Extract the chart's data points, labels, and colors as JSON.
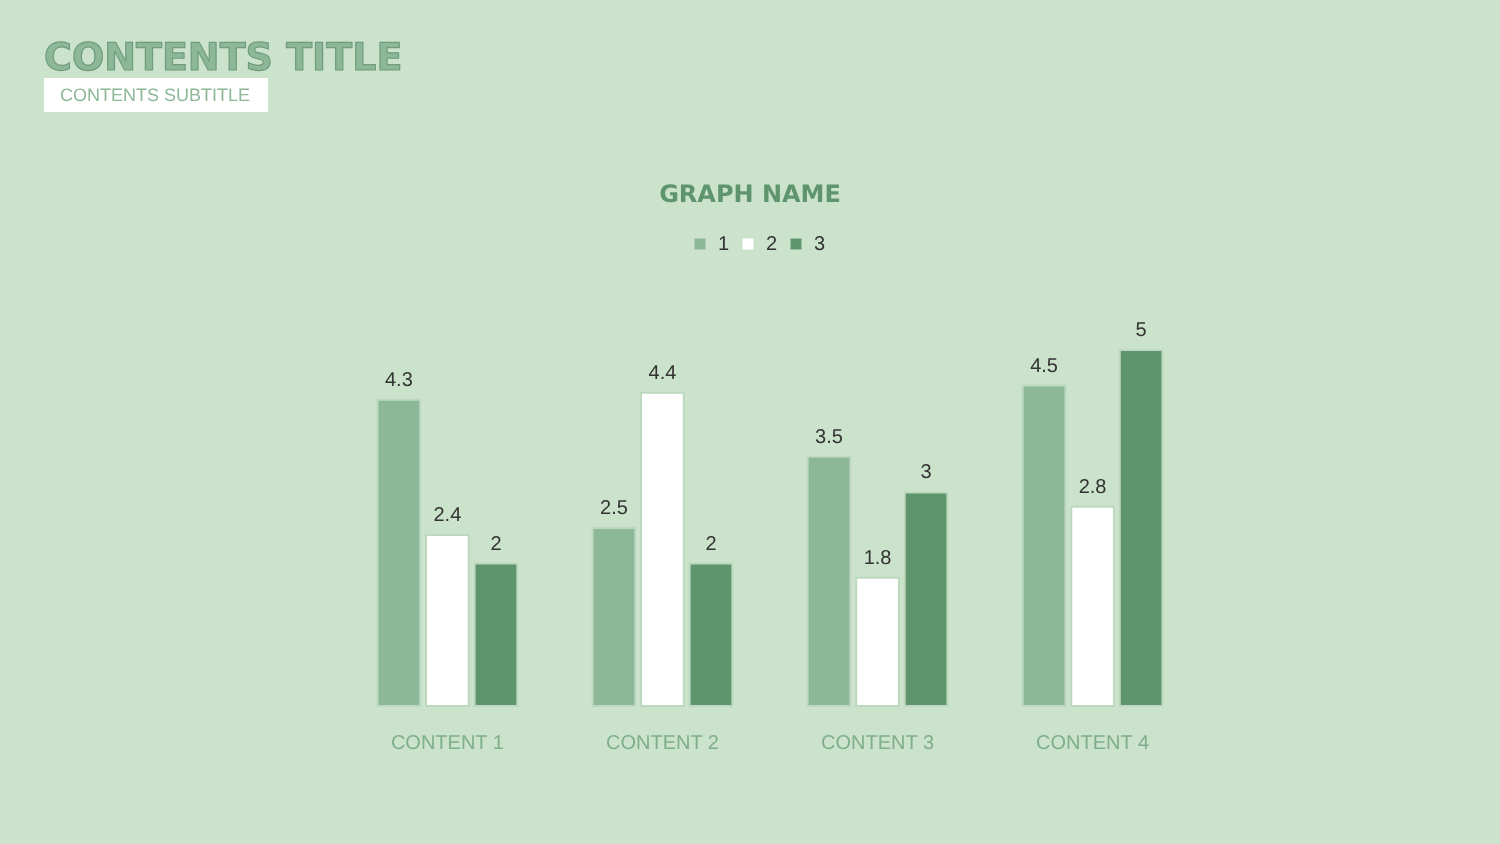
{
  "chart_data": {
    "type": "bar",
    "title": "CONTENTS TITLE",
    "subtitle": "CONTENTS SUBTITLE",
    "annotations": [
      "GRAPH NAME"
    ],
    "categories": [
      "CONTENT 1",
      "CONTENT 2",
      "CONTENT 3",
      "CONTENT 4"
    ],
    "series": [
      {
        "name": "1",
        "color": "#8db898",
        "values": [
          4.3,
          2.5,
          3.5,
          4.5
        ]
      },
      {
        "name": "2",
        "color": "#ffffff",
        "values": [
          2.4,
          4.4,
          1.8,
          2.8
        ]
      },
      {
        "name": "3",
        "color": "#5e956c",
        "values": [
          2,
          2,
          3,
          5
        ]
      }
    ],
    "ylim": [
      0,
      5
    ],
    "data_labels": true,
    "legend": "top",
    "grid": false,
    "tick_labels": "x"
  }
}
